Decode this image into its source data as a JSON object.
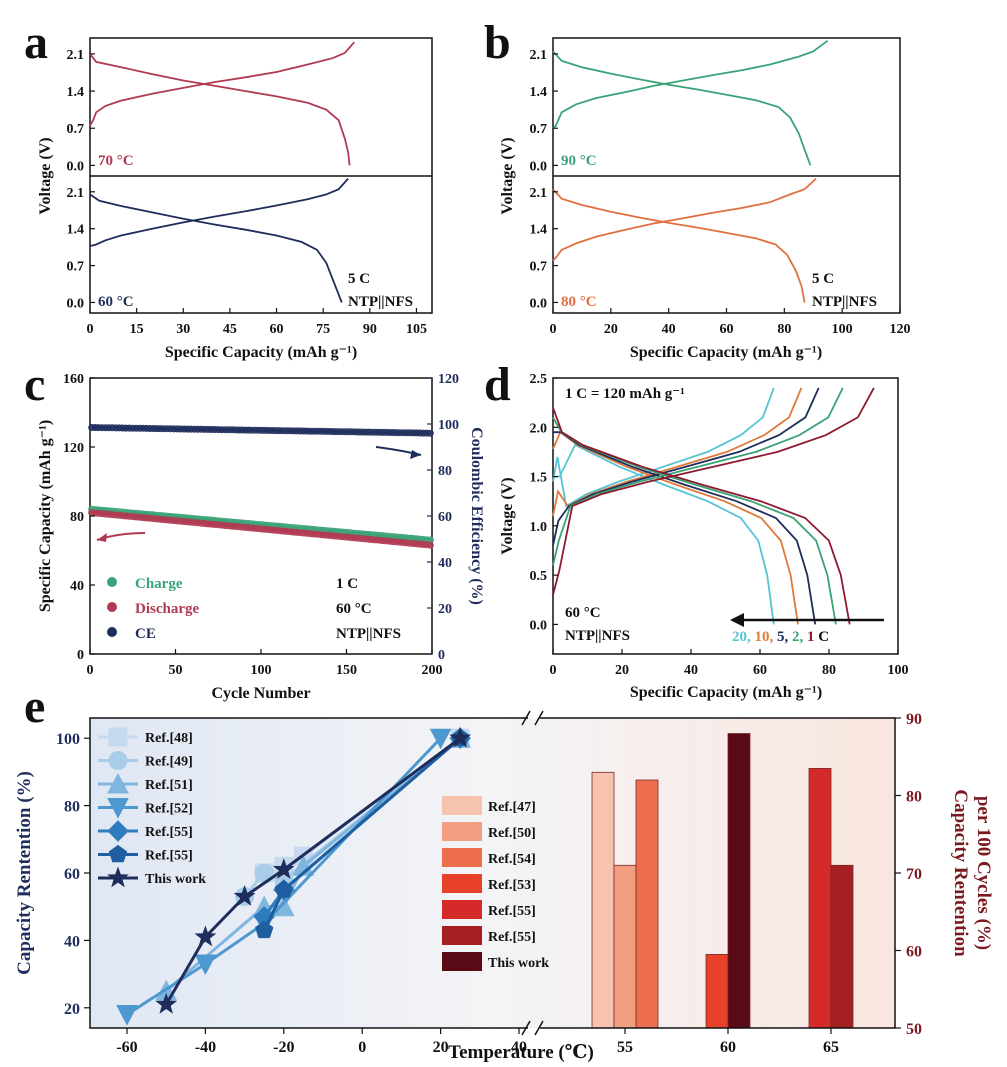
{
  "figure": {
    "panels": [
      "a",
      "b",
      "c",
      "d",
      "e"
    ]
  },
  "chart_data": [
    {
      "panel": "a",
      "type": "line",
      "xlabel": "Specific Capacity (mAh g⁻¹)",
      "ylabel": "Voltage (V)",
      "xlim": [
        0,
        110
      ],
      "x_ticks": [
        "0",
        "15",
        "30",
        "45",
        "60",
        "75",
        "90",
        "105"
      ],
      "subplots": [
        {
          "label": "70 °C",
          "color": "#b03a52",
          "ylim": [
            -0.2,
            2.4
          ],
          "y_ticks": [
            "0.0",
            "0.7",
            "1.4",
            "2.1"
          ],
          "charge": [
            [
              0,
              0.75
            ],
            [
              1,
              0.85
            ],
            [
              2,
              1.0
            ],
            [
              5,
              1.12
            ],
            [
              10,
              1.22
            ],
            [
              20,
              1.35
            ],
            [
              30,
              1.46
            ],
            [
              40,
              1.57
            ],
            [
              50,
              1.66
            ],
            [
              60,
              1.76
            ],
            [
              70,
              1.9
            ],
            [
              78,
              2.02
            ],
            [
              82,
              2.12
            ],
            [
              85,
              2.32
            ]
          ],
          "discharge": [
            [
              0,
              2.1
            ],
            [
              2,
              1.95
            ],
            [
              10,
              1.85
            ],
            [
              20,
              1.72
            ],
            [
              30,
              1.6
            ],
            [
              40,
              1.5
            ],
            [
              50,
              1.4
            ],
            [
              60,
              1.3
            ],
            [
              70,
              1.18
            ],
            [
              76,
              1.05
            ],
            [
              80,
              0.85
            ],
            [
              82,
              0.5
            ],
            [
              83,
              0.25
            ],
            [
              83.5,
              0.0
            ]
          ]
        },
        {
          "label": "60 °C",
          "color": "#1f2d5c",
          "ylim": [
            -0.2,
            2.4
          ],
          "y_ticks": [
            "0.0",
            "0.7",
            "1.4",
            "2.1"
          ],
          "charge": [
            [
              0,
              1.07
            ],
            [
              2,
              1.1
            ],
            [
              5,
              1.18
            ],
            [
              10,
              1.27
            ],
            [
              20,
              1.4
            ],
            [
              30,
              1.52
            ],
            [
              40,
              1.63
            ],
            [
              50,
              1.73
            ],
            [
              60,
              1.84
            ],
            [
              70,
              1.96
            ],
            [
              76,
              2.05
            ],
            [
              80,
              2.15
            ],
            [
              83,
              2.35
            ]
          ],
          "discharge": [
            [
              0,
              2.05
            ],
            [
              3,
              1.93
            ],
            [
              10,
              1.83
            ],
            [
              20,
              1.71
            ],
            [
              30,
              1.59
            ],
            [
              40,
              1.48
            ],
            [
              50,
              1.38
            ],
            [
              60,
              1.27
            ],
            [
              68,
              1.15
            ],
            [
              73,
              1.0
            ],
            [
              76,
              0.75
            ],
            [
              78,
              0.45
            ],
            [
              80,
              0.15
            ],
            [
              81,
              0.0
            ]
          ]
        }
      ],
      "annotations": [
        "5 C",
        "NTP||NFS"
      ]
    },
    {
      "panel": "b",
      "type": "line",
      "xlabel": "Specific Capacity (mAh g⁻¹)",
      "ylabel": "Voltage (V)",
      "xlim": [
        0,
        120
      ],
      "x_ticks": [
        "0",
        "20",
        "40",
        "60",
        "80",
        "100",
        "120"
      ],
      "subplots": [
        {
          "label": "90 °C",
          "color": "#3aa277",
          "ylim": [
            -0.2,
            2.4
          ],
          "y_ticks": [
            "0.0",
            "0.7",
            "1.4",
            "2.1"
          ],
          "charge": [
            [
              0,
              0.7
            ],
            [
              1,
              0.75
            ],
            [
              3,
              1.0
            ],
            [
              8,
              1.15
            ],
            [
              15,
              1.27
            ],
            [
              25,
              1.38
            ],
            [
              35,
              1.5
            ],
            [
              45,
              1.6
            ],
            [
              55,
              1.7
            ],
            [
              65,
              1.79
            ],
            [
              75,
              1.9
            ],
            [
              85,
              2.05
            ],
            [
              90,
              2.15
            ],
            [
              95,
              2.35
            ]
          ],
          "discharge": [
            [
              0,
              2.15
            ],
            [
              3,
              1.97
            ],
            [
              10,
              1.85
            ],
            [
              20,
              1.73
            ],
            [
              30,
              1.62
            ],
            [
              40,
              1.52
            ],
            [
              50,
              1.43
            ],
            [
              60,
              1.33
            ],
            [
              70,
              1.23
            ],
            [
              78,
              1.1
            ],
            [
              82,
              0.9
            ],
            [
              85,
              0.6
            ],
            [
              87,
              0.3
            ],
            [
              89,
              0.0
            ]
          ]
        },
        {
          "label": "80 °C",
          "color": "#e26f3f",
          "ylim": [
            -0.2,
            2.4
          ],
          "y_ticks": [
            "0.0",
            "0.7",
            "1.4",
            "2.1"
          ],
          "charge": [
            [
              0,
              0.8
            ],
            [
              1,
              0.85
            ],
            [
              3,
              1.0
            ],
            [
              8,
              1.12
            ],
            [
              15,
              1.25
            ],
            [
              25,
              1.38
            ],
            [
              35,
              1.5
            ],
            [
              45,
              1.6
            ],
            [
              55,
              1.7
            ],
            [
              65,
              1.79
            ],
            [
              75,
              1.9
            ],
            [
              82,
              2.05
            ],
            [
              87,
              2.15
            ],
            [
              91,
              2.35
            ]
          ],
          "discharge": [
            [
              0,
              2.15
            ],
            [
              3,
              1.97
            ],
            [
              10,
              1.85
            ],
            [
              20,
              1.72
            ],
            [
              30,
              1.61
            ],
            [
              40,
              1.51
            ],
            [
              50,
              1.42
            ],
            [
              60,
              1.32
            ],
            [
              70,
              1.22
            ],
            [
              77,
              1.1
            ],
            [
              81,
              0.9
            ],
            [
              84,
              0.6
            ],
            [
              86,
              0.3
            ],
            [
              87,
              0.0
            ]
          ]
        }
      ],
      "annotations": [
        "5 C",
        "NTP||NFS"
      ]
    },
    {
      "panel": "c",
      "type": "scatter",
      "xlabel": "Cycle Number",
      "ylabel": "Specific Capacity (mAh g⁻¹)",
      "ylabel_right": "Coulombic Efficiency (%)",
      "xlim": [
        0,
        200
      ],
      "ylim": [
        0,
        160
      ],
      "ylim_right": [
        0,
        120
      ],
      "x_ticks": [
        "0",
        "50",
        "100",
        "150",
        "200"
      ],
      "y_ticks": [
        "0",
        "40",
        "80",
        "120",
        "160"
      ],
      "y_ticks_right": [
        "0",
        "20",
        "40",
        "60",
        "80",
        "100",
        "120"
      ],
      "series": [
        {
          "name": "Charge",
          "color": "#3aa277",
          "axis": "left",
          "start": 84,
          "end": 66
        },
        {
          "name": "Discharge",
          "color": "#b03a52",
          "axis": "left",
          "start": 82,
          "end": 63
        },
        {
          "name": "CE",
          "color": "#1f2d5c",
          "axis": "right",
          "start": 98.5,
          "end": 96
        }
      ],
      "annotations": [
        "1 C",
        "60 °C",
        "NTP||NFS"
      ]
    },
    {
      "panel": "d",
      "type": "line",
      "xlabel": "Specific Capacity (mAh g⁻¹)",
      "ylabel": "Voltage (V)",
      "xlim": [
        0,
        100
      ],
      "ylim": [
        -0.3,
        2.5
      ],
      "x_ticks": [
        "0",
        "20",
        "40",
        "60",
        "80",
        "100"
      ],
      "y_ticks": [
        "0.0",
        "0.5",
        "1.0",
        "1.5",
        "2.0",
        "2.5"
      ],
      "title_note": "1 C = 120 mAh g⁻¹",
      "series": [
        {
          "name": "20",
          "color": "#55c4d4",
          "cap_discharge": 64,
          "cap_charge": 64,
          "start_charge": 1.45,
          "start_discharge": 1.5
        },
        {
          "name": "10",
          "color": "#e07a3a",
          "cap_discharge": 71,
          "cap_charge": 72,
          "start_charge": 1.1,
          "start_discharge": 1.78
        },
        {
          "name": "5",
          "color": "#1f2d5c",
          "cap_discharge": 76,
          "cap_charge": 77,
          "start_charge": 0.8,
          "start_discharge": 1.95
        },
        {
          "name": "2",
          "color": "#3aa277",
          "cap_discharge": 82,
          "cap_charge": 84,
          "start_charge": 0.6,
          "start_discharge": 2.1
        },
        {
          "name": "1",
          "color": "#8e1a2e",
          "cap_discharge": 86,
          "cap_charge": 93,
          "start_charge": 0.3,
          "start_discharge": 2.2
        }
      ],
      "rate_unit": "C",
      "annotations": [
        "60 °C",
        "NTP||NFS"
      ]
    },
    {
      "panel": "e",
      "type": "line",
      "xlabel": "Temperature (℃)",
      "ylabel": "Capacity Rentention (%)",
      "ylabel_right": "Capacity Rentention per 100 Cycles (%)",
      "x_ticks_left": [
        "-60",
        "-40",
        "-20",
        "0",
        "20",
        "40"
      ],
      "x_ticks_right": [
        "55",
        "60",
        "65"
      ],
      "y_ticks": [
        "20",
        "40",
        "60",
        "80",
        "100"
      ],
      "y_ticks_right": [
        "50",
        "60",
        "70",
        "80",
        "90"
      ],
      "ylim": [
        14,
        106
      ],
      "ylim_right": [
        50,
        90
      ],
      "line_series": [
        {
          "name": "Ref.[48]",
          "color": "#c7d9ee",
          "marker": "square",
          "points": [
            [
              -25,
              60
            ],
            [
              -20,
              62
            ],
            [
              -15,
              65
            ],
            [
              25,
              100
            ]
          ]
        },
        {
          "name": "Ref.[49]",
          "color": "#a9cde8",
          "marker": "circle",
          "points": [
            [
              -30,
              53
            ],
            [
              -25,
              60
            ],
            [
              -20,
              58
            ],
            [
              25,
              100
            ]
          ]
        },
        {
          "name": "Ref.[51]",
          "color": "#7fb6de",
          "marker": "triangle-up",
          "points": [
            [
              -50,
              25
            ],
            [
              -25,
              50
            ],
            [
              -20,
              50
            ],
            [
              -15,
              62
            ],
            [
              25,
              100
            ]
          ]
        },
        {
          "name": "Ref.[52]",
          "color": "#4d98cf",
          "marker": "triangle-down",
          "points": [
            [
              -60,
              18
            ],
            [
              -40,
              33
            ],
            [
              -25,
              45
            ],
            [
              20,
              100
            ]
          ]
        },
        {
          "name": "Ref.[55]",
          "color": "#2f7cbd",
          "marker": "diamond",
          "points": [
            [
              -25,
              47
            ],
            [
              -20,
              55
            ],
            [
              25,
              100
            ]
          ]
        },
        {
          "name": "Ref.[55]",
          "color": "#1f5ea0",
          "marker": "pentagon",
          "points": [
            [
              -25,
              43
            ],
            [
              -20,
              55
            ],
            [
              25,
              100
            ]
          ]
        },
        {
          "name": "This work",
          "color": "#1f2d5c",
          "marker": "star",
          "points": [
            [
              -50,
              21
            ],
            [
              -40,
              41
            ],
            [
              -30,
              53
            ],
            [
              -20,
              61
            ],
            [
              25,
              100
            ]
          ]
        }
      ],
      "bar_series": [
        {
          "name": "Ref.[47]",
          "color": "#f6c4ae",
          "temp": 55,
          "value": 83
        },
        {
          "name": "Ref.[50]",
          "color": "#f29e80",
          "temp": 55,
          "value": 71
        },
        {
          "name": "Ref.[54]",
          "color": "#ec6e4c",
          "temp": 55,
          "value": 82
        },
        {
          "name": "Ref.[53]",
          "color": "#e8412a",
          "temp": 60,
          "value": 59.5
        },
        {
          "name": "Ref.[55]",
          "color": "#d42a2a",
          "temp": 65,
          "value": 83.5
        },
        {
          "name": "Ref.[55]",
          "color": "#a51f22",
          "temp": 65,
          "value": 71
        },
        {
          "name": "This work",
          "color": "#5a0a14",
          "temp": 60,
          "value": 88
        }
      ]
    }
  ]
}
